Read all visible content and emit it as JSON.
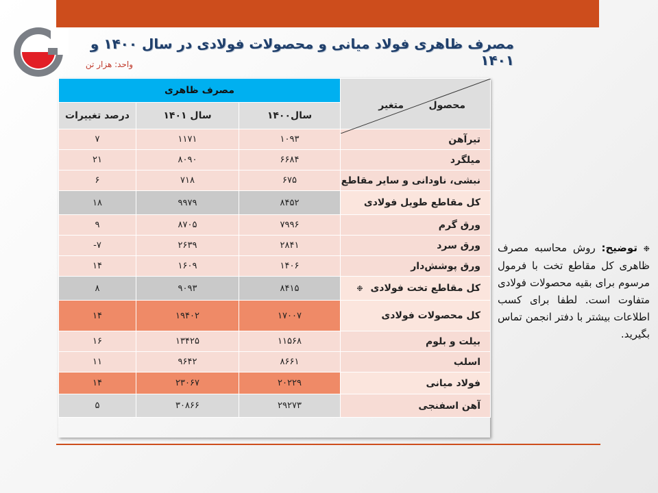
{
  "header": {
    "title": "مصرف ظاهری فولاد میانی و محصولات فولادی در سال ۱۴۰۰ و ۱۴۰۱",
    "unit": "واحد: هزار تن"
  },
  "colors": {
    "brand_orange": "#cd4d1c",
    "header_blue": "#00b0f0",
    "row_light": "#f7dcd5",
    "row_gray": "#c9c9c9",
    "row_dark": "#ef8a67"
  },
  "table": {
    "group_header": "مصرف ظاهری",
    "columns": {
      "year1400": "سال۱۴۰۰",
      "year1401": "سال ۱۴۰۱",
      "change": "درصد تغییرات"
    },
    "corner": {
      "product": "محصول",
      "variable": "متغیر"
    },
    "rows": [
      {
        "label": "تیرآهن",
        "y1400": "۱۰۹۳",
        "y1401": "۱۱۷۱",
        "change": "۷"
      },
      {
        "label": "میلگرد",
        "y1400": "۶۶۸۴",
        "y1401": "۸۰۹۰",
        "change": "۲۱"
      },
      {
        "label": "نبشی، ناودانی و سایر مقاطع",
        "y1400": "۶۷۵",
        "y1401": "۷۱۸",
        "change": "۶"
      },
      {
        "label": "کل مقاطع طویل فولادی",
        "y1400": "۸۴۵۲",
        "y1401": "۹۹۷۹",
        "change": "۱۸"
      },
      {
        "label": "ورق گرم",
        "y1400": "۷۹۹۶",
        "y1401": "۸۷۰۵",
        "change": "۹"
      },
      {
        "label": "ورق سرد",
        "y1400": "۲۸۴۱",
        "y1401": "۲۶۳۹",
        "change": "-۷"
      },
      {
        "label": "ورق پوشش‌دار",
        "y1400": "۱۴۰۶",
        "y1401": "۱۶۰۹",
        "change": "۱۴"
      },
      {
        "label": "کل مقاطع تخت فولادی",
        "marker": "❉",
        "y1400": "۸۴۱۵",
        "y1401": "۹۰۹۳",
        "change": "۸"
      },
      {
        "label": "کل محصولات فولادی",
        "y1400": "۱۷۰۰۷",
        "y1401": "۱۹۴۰۲",
        "change": "۱۴"
      },
      {
        "label": "بیلت و بلوم",
        "y1400": "۱۱۵۶۸",
        "y1401": "۱۳۴۲۵",
        "change": "۱۶"
      },
      {
        "label": "اسلب",
        "y1400": "۸۶۶۱",
        "y1401": "۹۶۴۲",
        "change": "۱۱"
      },
      {
        "label": "فولاد میانی",
        "y1400": "۲۰۲۲۹",
        "y1401": "۲۳۰۶۷",
        "change": "۱۴"
      },
      {
        "label": "آهن اسفنجی",
        "y1400": "۲۹۲۷۳",
        "y1401": "۳۰۸۶۶",
        "change": "۵"
      }
    ]
  },
  "note": {
    "marker": "❉",
    "heading": "توضیح:",
    "text": "روش محاسبه مصرف ظاهری کل مقاطع تخت با فرمول مرسوم برای بقیه محصولات فولادی متفاوت است. لطفا برای کسب اطلاعات بیشتر با دفتر انجمن تماس بگیرید."
  }
}
